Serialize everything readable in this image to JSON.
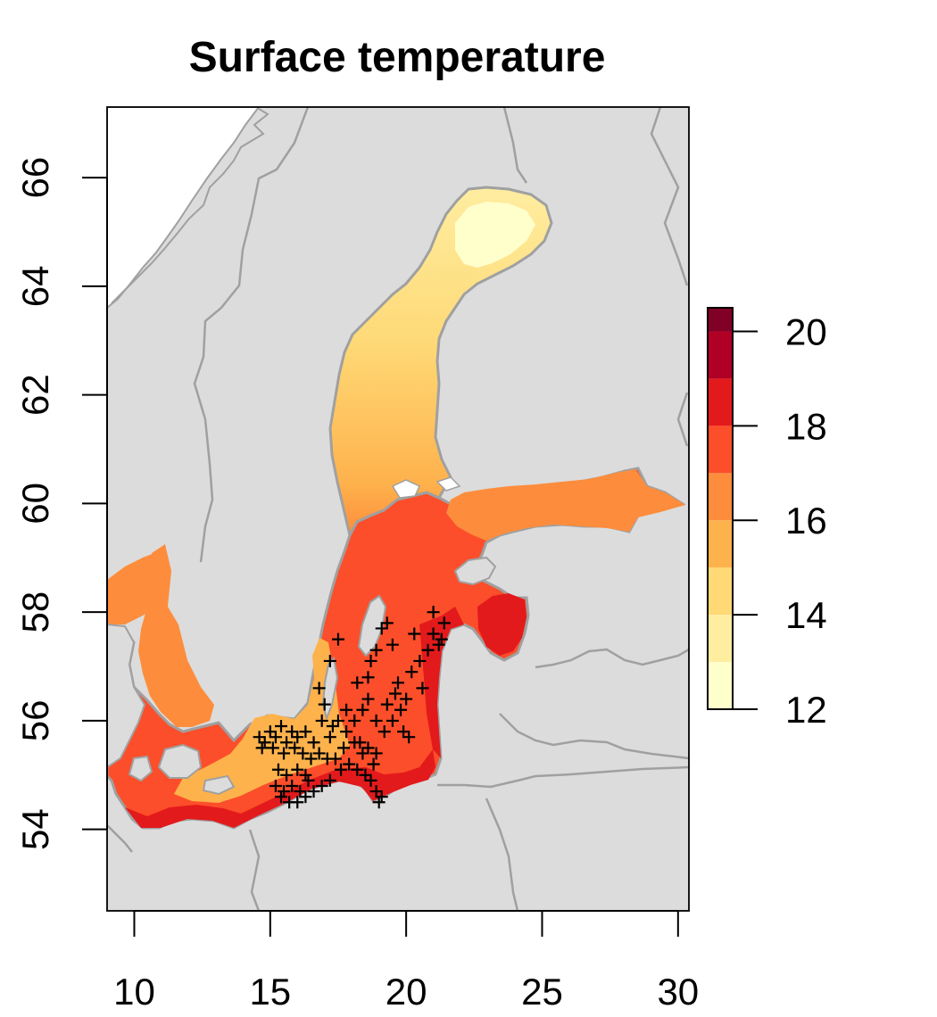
{
  "title": "Surface temperature",
  "map": {
    "lon_range": [
      9,
      30.4
    ],
    "lat_range": [
      52.5,
      67.3
    ],
    "x_ticks": [
      10,
      15,
      20,
      25,
      30
    ],
    "y_ticks": [
      54,
      56,
      58,
      60,
      62,
      64,
      66
    ],
    "land_color": "#dcdcdc",
    "border_color": "#a0a0a0"
  },
  "legend": {
    "ticks": [
      12,
      14,
      16,
      18,
      20
    ],
    "range": [
      12,
      20
    ],
    "placement": "right",
    "bins": [
      {
        "lo": 12,
        "hi": 13,
        "color": "#ffffcc"
      },
      {
        "lo": 13,
        "hi": 14,
        "color": "#ffeda0"
      },
      {
        "lo": 14,
        "hi": 15,
        "color": "#fed976"
      },
      {
        "lo": 15,
        "hi": 16,
        "color": "#feb24c"
      },
      {
        "lo": 16,
        "hi": 17,
        "color": "#fd8d3c"
      },
      {
        "lo": 17,
        "hi": 18,
        "color": "#fc4e2a"
      },
      {
        "lo": 18,
        "hi": 19,
        "color": "#e31a1c"
      },
      {
        "lo": 19,
        "hi": 20,
        "color": "#b10026"
      },
      {
        "lo": 20,
        "hi": 20.5,
        "color": "#800026"
      }
    ]
  },
  "stations": [
    [
      14.6,
      55.7
    ],
    [
      14.8,
      55.6
    ],
    [
      15.0,
      55.8
    ],
    [
      15.2,
      55.7
    ],
    [
      15.4,
      55.9
    ],
    [
      15.6,
      55.6
    ],
    [
      15.8,
      55.8
    ],
    [
      16.0,
      55.7
    ],
    [
      16.3,
      55.8
    ],
    [
      16.6,
      55.6
    ],
    [
      14.7,
      55.5
    ],
    [
      15.1,
      55.5
    ],
    [
      15.5,
      55.4
    ],
    [
      15.9,
      55.5
    ],
    [
      16.2,
      55.4
    ],
    [
      16.5,
      55.3
    ],
    [
      16.8,
      55.4
    ],
    [
      17.1,
      55.3
    ],
    [
      17.4,
      55.3
    ],
    [
      17.7,
      55.5
    ],
    [
      15.3,
      55.1
    ],
    [
      15.6,
      55.0
    ],
    [
      16.0,
      55.1
    ],
    [
      16.3,
      55.0
    ],
    [
      15.2,
      54.8
    ],
    [
      15.5,
      54.7
    ],
    [
      15.8,
      54.8
    ],
    [
      16.1,
      54.7
    ],
    [
      16.4,
      54.9
    ],
    [
      15.4,
      54.6
    ],
    [
      15.7,
      54.5
    ],
    [
      16.0,
      54.5
    ],
    [
      16.3,
      54.6
    ],
    [
      16.6,
      54.7
    ],
    [
      16.9,
      54.8
    ],
    [
      17.2,
      54.9
    ],
    [
      17.6,
      55.1
    ],
    [
      17.9,
      55.2
    ],
    [
      18.2,
      55.1
    ],
    [
      18.5,
      55.0
    ],
    [
      18.7,
      54.9
    ],
    [
      18.9,
      54.7
    ],
    [
      19.1,
      54.6
    ],
    [
      19.0,
      54.5
    ],
    [
      18.8,
      55.2
    ],
    [
      18.4,
      55.4
    ],
    [
      18.1,
      55.6
    ],
    [
      17.8,
      55.8
    ],
    [
      17.5,
      56.0
    ],
    [
      17.8,
      56.2
    ],
    [
      18.1,
      56.0
    ],
    [
      18.4,
      56.2
    ],
    [
      18.6,
      56.4
    ],
    [
      18.9,
      56.0
    ],
    [
      19.2,
      55.8
    ],
    [
      19.5,
      56.0
    ],
    [
      19.8,
      56.2
    ],
    [
      19.6,
      56.5
    ],
    [
      20.0,
      56.4
    ],
    [
      20.1,
      55.7
    ],
    [
      19.9,
      55.8
    ],
    [
      18.3,
      55.6
    ],
    [
      18.6,
      55.5
    ],
    [
      18.9,
      55.4
    ],
    [
      17.2,
      55.7
    ],
    [
      16.9,
      56.0
    ],
    [
      17.3,
      55.9
    ],
    [
      17.0,
      56.3
    ],
    [
      16.8,
      56.6
    ],
    [
      17.2,
      57.1
    ],
    [
      17.5,
      57.5
    ],
    [
      18.7,
      57.1
    ],
    [
      18.9,
      57.3
    ],
    [
      19.1,
      57.7
    ],
    [
      19.3,
      57.8
    ],
    [
      19.5,
      57.4
    ],
    [
      20.2,
      56.9
    ],
    [
      20.5,
      57.1
    ],
    [
      20.8,
      57.3
    ],
    [
      21.0,
      57.6
    ],
    [
      21.2,
      57.4
    ],
    [
      21.4,
      57.8
    ],
    [
      21.0,
      58.0
    ],
    [
      20.6,
      56.6
    ],
    [
      20.3,
      57.6
    ],
    [
      21.3,
      57.5
    ],
    [
      19.7,
      56.7
    ],
    [
      18.2,
      56.7
    ],
    [
      18.6,
      56.8
    ],
    [
      19.3,
      56.3
    ]
  ]
}
